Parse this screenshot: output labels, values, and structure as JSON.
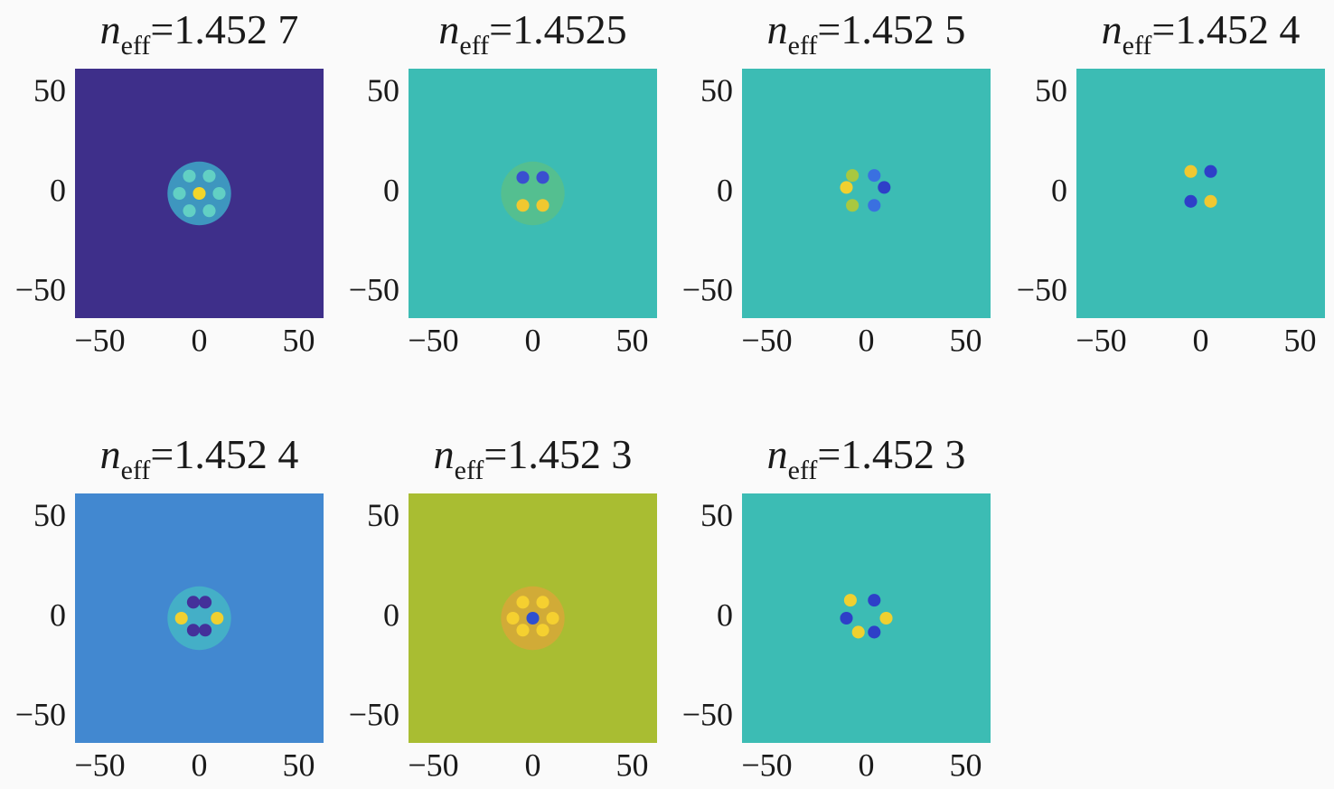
{
  "chart_data": [
    {
      "type": "image",
      "title": {
        "symbol": "n",
        "subscript": "eff",
        "text": "=1.452 7"
      },
      "xlim": [
        -62.5,
        62.5
      ],
      "ylim": [
        -62.5,
        62.5
      ],
      "xticks": [
        {
          "value": -50,
          "label": "−50"
        },
        0,
        50
      ],
      "yticks": [
        {
          "value": -50,
          "label": "−50"
        },
        0,
        50
      ],
      "background": "#3e2f8a",
      "halo": "#3ea8c8",
      "spots": [
        {
          "x": 0,
          "y": 0,
          "color": "#f2d52a"
        },
        {
          "x": -5,
          "y": 8.7,
          "color": "#62d0c4"
        },
        {
          "x": 5,
          "y": 8.7,
          "color": "#62d0c4"
        },
        {
          "x": 10,
          "y": 0,
          "color": "#62d0c4"
        },
        {
          "x": 5,
          "y": -8.7,
          "color": "#62d0c4"
        },
        {
          "x": -5,
          "y": -8.7,
          "color": "#62d0c4"
        },
        {
          "x": -10,
          "y": 0,
          "color": "#62d0c4"
        }
      ]
    },
    {
      "type": "image",
      "title": {
        "symbol": "n",
        "subscript": "eff",
        "text": "=1.4525"
      },
      "xlim": [
        -62.5,
        62.5
      ],
      "ylim": [
        -62.5,
        62.5
      ],
      "xticks": [
        {
          "value": -50,
          "label": "−50"
        },
        0,
        50
      ],
      "yticks": [
        {
          "value": -50,
          "label": "−50"
        },
        0,
        50
      ],
      "background": "#3cbcb4",
      "halo": "#58c08a",
      "spots": [
        {
          "x": -5,
          "y": 8,
          "color": "#3a4fd0"
        },
        {
          "x": 5,
          "y": 8,
          "color": "#3a4fd0"
        },
        {
          "x": -5,
          "y": -6,
          "color": "#f0c830"
        },
        {
          "x": 5,
          "y": -6,
          "color": "#f0c830"
        }
      ]
    },
    {
      "type": "image",
      "title": {
        "symbol": "n",
        "subscript": "eff",
        "text": "=1.452 5"
      },
      "xlim": [
        -62.5,
        62.5
      ],
      "ylim": [
        -62.5,
        62.5
      ],
      "xticks": [
        {
          "value": -50,
          "label": "−50"
        },
        0,
        50
      ],
      "yticks": [
        {
          "value": -50,
          "label": "−50"
        },
        0,
        50
      ],
      "background": "#3cbcb4",
      "spots": [
        {
          "x": -10,
          "y": 3,
          "color": "#f0d030"
        },
        {
          "x": -7,
          "y": 9,
          "color": "#a8c840"
        },
        {
          "x": -7,
          "y": -6,
          "color": "#a8c840"
        },
        {
          "x": 4,
          "y": 9,
          "color": "#3a70e0"
        },
        {
          "x": 9,
          "y": 3,
          "color": "#2e3fc8"
        },
        {
          "x": 4,
          "y": -6,
          "color": "#3a70e0"
        }
      ]
    },
    {
      "type": "image",
      "title": {
        "symbol": "n",
        "subscript": "eff",
        "text": "=1.452 4"
      },
      "xlim": [
        -62.5,
        62.5
      ],
      "ylim": [
        -62.5,
        62.5
      ],
      "xticks": [
        {
          "value": -50,
          "label": "−50"
        },
        0,
        50
      ],
      "yticks": [
        {
          "value": -50,
          "label": "−50"
        },
        0,
        50
      ],
      "background": "#3cbcb4",
      "spots": [
        {
          "x": -5,
          "y": 11,
          "color": "#f0c830"
        },
        {
          "x": 5,
          "y": 11,
          "color": "#2e3fc8"
        },
        {
          "x": -5,
          "y": -4,
          "color": "#2e3fc8"
        },
        {
          "x": 5,
          "y": -4,
          "color": "#f0c830"
        }
      ]
    },
    {
      "type": "image",
      "title": {
        "symbol": "n",
        "subscript": "eff",
        "text": "=1.452 4"
      },
      "xlim": [
        -62.5,
        62.5
      ],
      "ylim": [
        -62.5,
        62.5
      ],
      "xticks": [
        {
          "value": -50,
          "label": "−50"
        },
        0,
        50
      ],
      "yticks": [
        {
          "value": -50,
          "label": "−50"
        },
        0,
        50
      ],
      "background": "#4288d0",
      "halo": "#44b6c6",
      "spots": [
        {
          "x": -9,
          "y": 0,
          "color": "#f0d030"
        },
        {
          "x": 9,
          "y": 0,
          "color": "#f0d030"
        },
        {
          "x": -3,
          "y": 8,
          "color": "#44309a"
        },
        {
          "x": 3,
          "y": 8,
          "color": "#44309a"
        },
        {
          "x": -3,
          "y": -6,
          "color": "#44309a"
        },
        {
          "x": 3,
          "y": -6,
          "color": "#44309a"
        }
      ]
    },
    {
      "type": "image",
      "title": {
        "symbol": "n",
        "subscript": "eff",
        "text": "=1.452 3"
      },
      "xlim": [
        -62.5,
        62.5
      ],
      "ylim": [
        -62.5,
        62.5
      ],
      "xticks": [
        {
          "value": -50,
          "label": "−50"
        },
        0,
        50
      ],
      "yticks": [
        {
          "value": -50,
          "label": "−50"
        },
        0,
        50
      ],
      "background": "#a9bd32",
      "halo": "#d8a838",
      "spots": [
        {
          "x": 0,
          "y": 0,
          "color": "#2e50d0"
        },
        {
          "x": -10,
          "y": 0,
          "color": "#f5d030"
        },
        {
          "x": 10,
          "y": 0,
          "color": "#f5d030"
        },
        {
          "x": -5,
          "y": 8,
          "color": "#f5d030"
        },
        {
          "x": 5,
          "y": 8,
          "color": "#f5d030"
        },
        {
          "x": -5,
          "y": -6,
          "color": "#f5d030"
        },
        {
          "x": 5,
          "y": -6,
          "color": "#f5d030"
        }
      ]
    },
    {
      "type": "image",
      "title": {
        "symbol": "n",
        "subscript": "eff",
        "text": "=1.452 3"
      },
      "xlim": [
        -62.5,
        62.5
      ],
      "ylim": [
        -62.5,
        62.5
      ],
      "xticks": [
        {
          "value": -50,
          "label": "−50"
        },
        0,
        50
      ],
      "yticks": [
        {
          "value": -50,
          "label": "−50"
        },
        0,
        50
      ],
      "background": "#3cbcb4",
      "spots": [
        {
          "x": -8,
          "y": 9,
          "color": "#f0d030"
        },
        {
          "x": 4,
          "y": 9,
          "color": "#2e3fc8"
        },
        {
          "x": -10,
          "y": 0,
          "color": "#2e3fc8"
        },
        {
          "x": 10,
          "y": 0,
          "color": "#f0d030"
        },
        {
          "x": -4,
          "y": -7,
          "color": "#f0d030"
        },
        {
          "x": 4,
          "y": -7,
          "color": "#2e3fc8"
        }
      ]
    }
  ]
}
